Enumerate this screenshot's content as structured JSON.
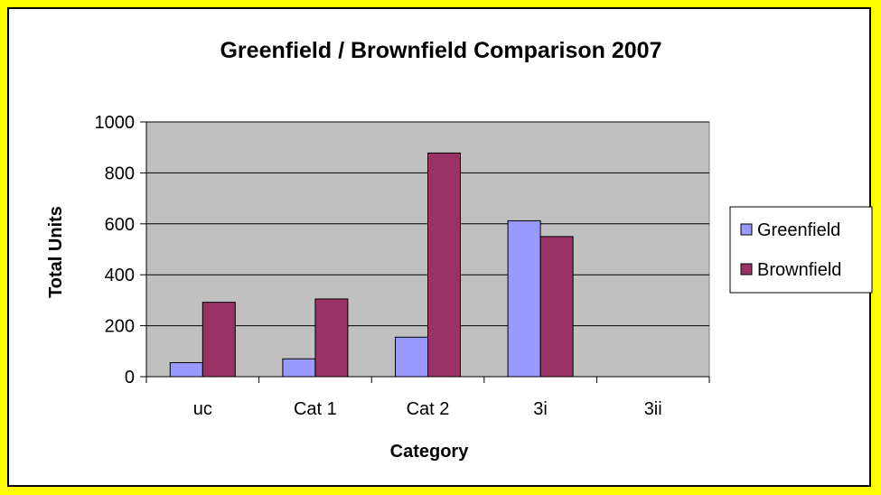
{
  "chart_data": {
    "type": "bar",
    "title": "Greenfield / Brownfield Comparison 2007",
    "xlabel": "Category",
    "ylabel": "Total Units",
    "categories": [
      "uc",
      "Cat 1",
      "Cat 2",
      "3i",
      "3ii"
    ],
    "series": [
      {
        "name": "Greenfield",
        "color": "#9999ff",
        "values": [
          55,
          70,
          155,
          612,
          0
        ]
      },
      {
        "name": "Brownfield",
        "color": "#993366",
        "values": [
          292,
          305,
          878,
          550,
          0
        ]
      }
    ],
    "ylim": [
      0,
      1000
    ],
    "yticks": [
      "0",
      "200",
      "400",
      "600",
      "800",
      "1000"
    ],
    "grid": true,
    "plot_background": "#c0c0c0",
    "page_background": "#ffff00",
    "legend_position": "right"
  }
}
